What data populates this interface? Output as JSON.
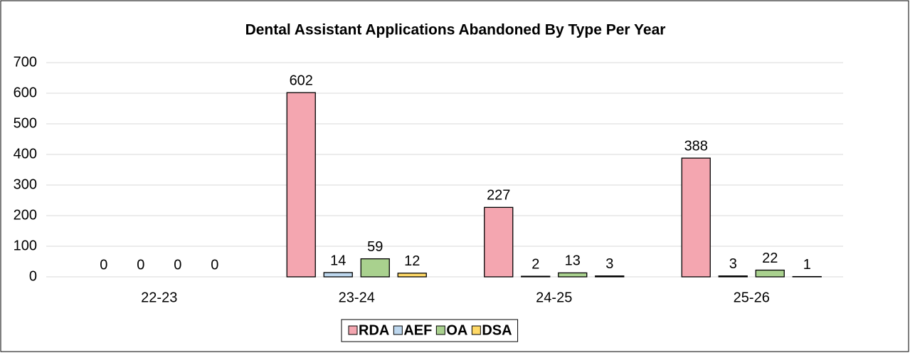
{
  "chart_data": {
    "type": "bar",
    "title": "Dental Assistant Applications Abandoned By Type Per Year",
    "categories": [
      "22-23",
      "23-24",
      "24-25",
      "25-26"
    ],
    "series": [
      {
        "name": "RDA",
        "color": "#f4a6b0",
        "values": [
          0,
          602,
          227,
          388
        ]
      },
      {
        "name": "AEF",
        "color": "#bdd7ee",
        "values": [
          0,
          14,
          2,
          3
        ]
      },
      {
        "name": "OA",
        "color": "#a9d18e",
        "values": [
          0,
          59,
          13,
          22
        ]
      },
      {
        "name": "DSA",
        "color": "#ffd966",
        "values": [
          0,
          12,
          3,
          1
        ]
      }
    ],
    "ylim": [
      0,
      700
    ],
    "yticks": [
      0,
      100,
      200,
      300,
      400,
      500,
      600,
      700
    ],
    "grid": true,
    "legend": "bottom"
  }
}
